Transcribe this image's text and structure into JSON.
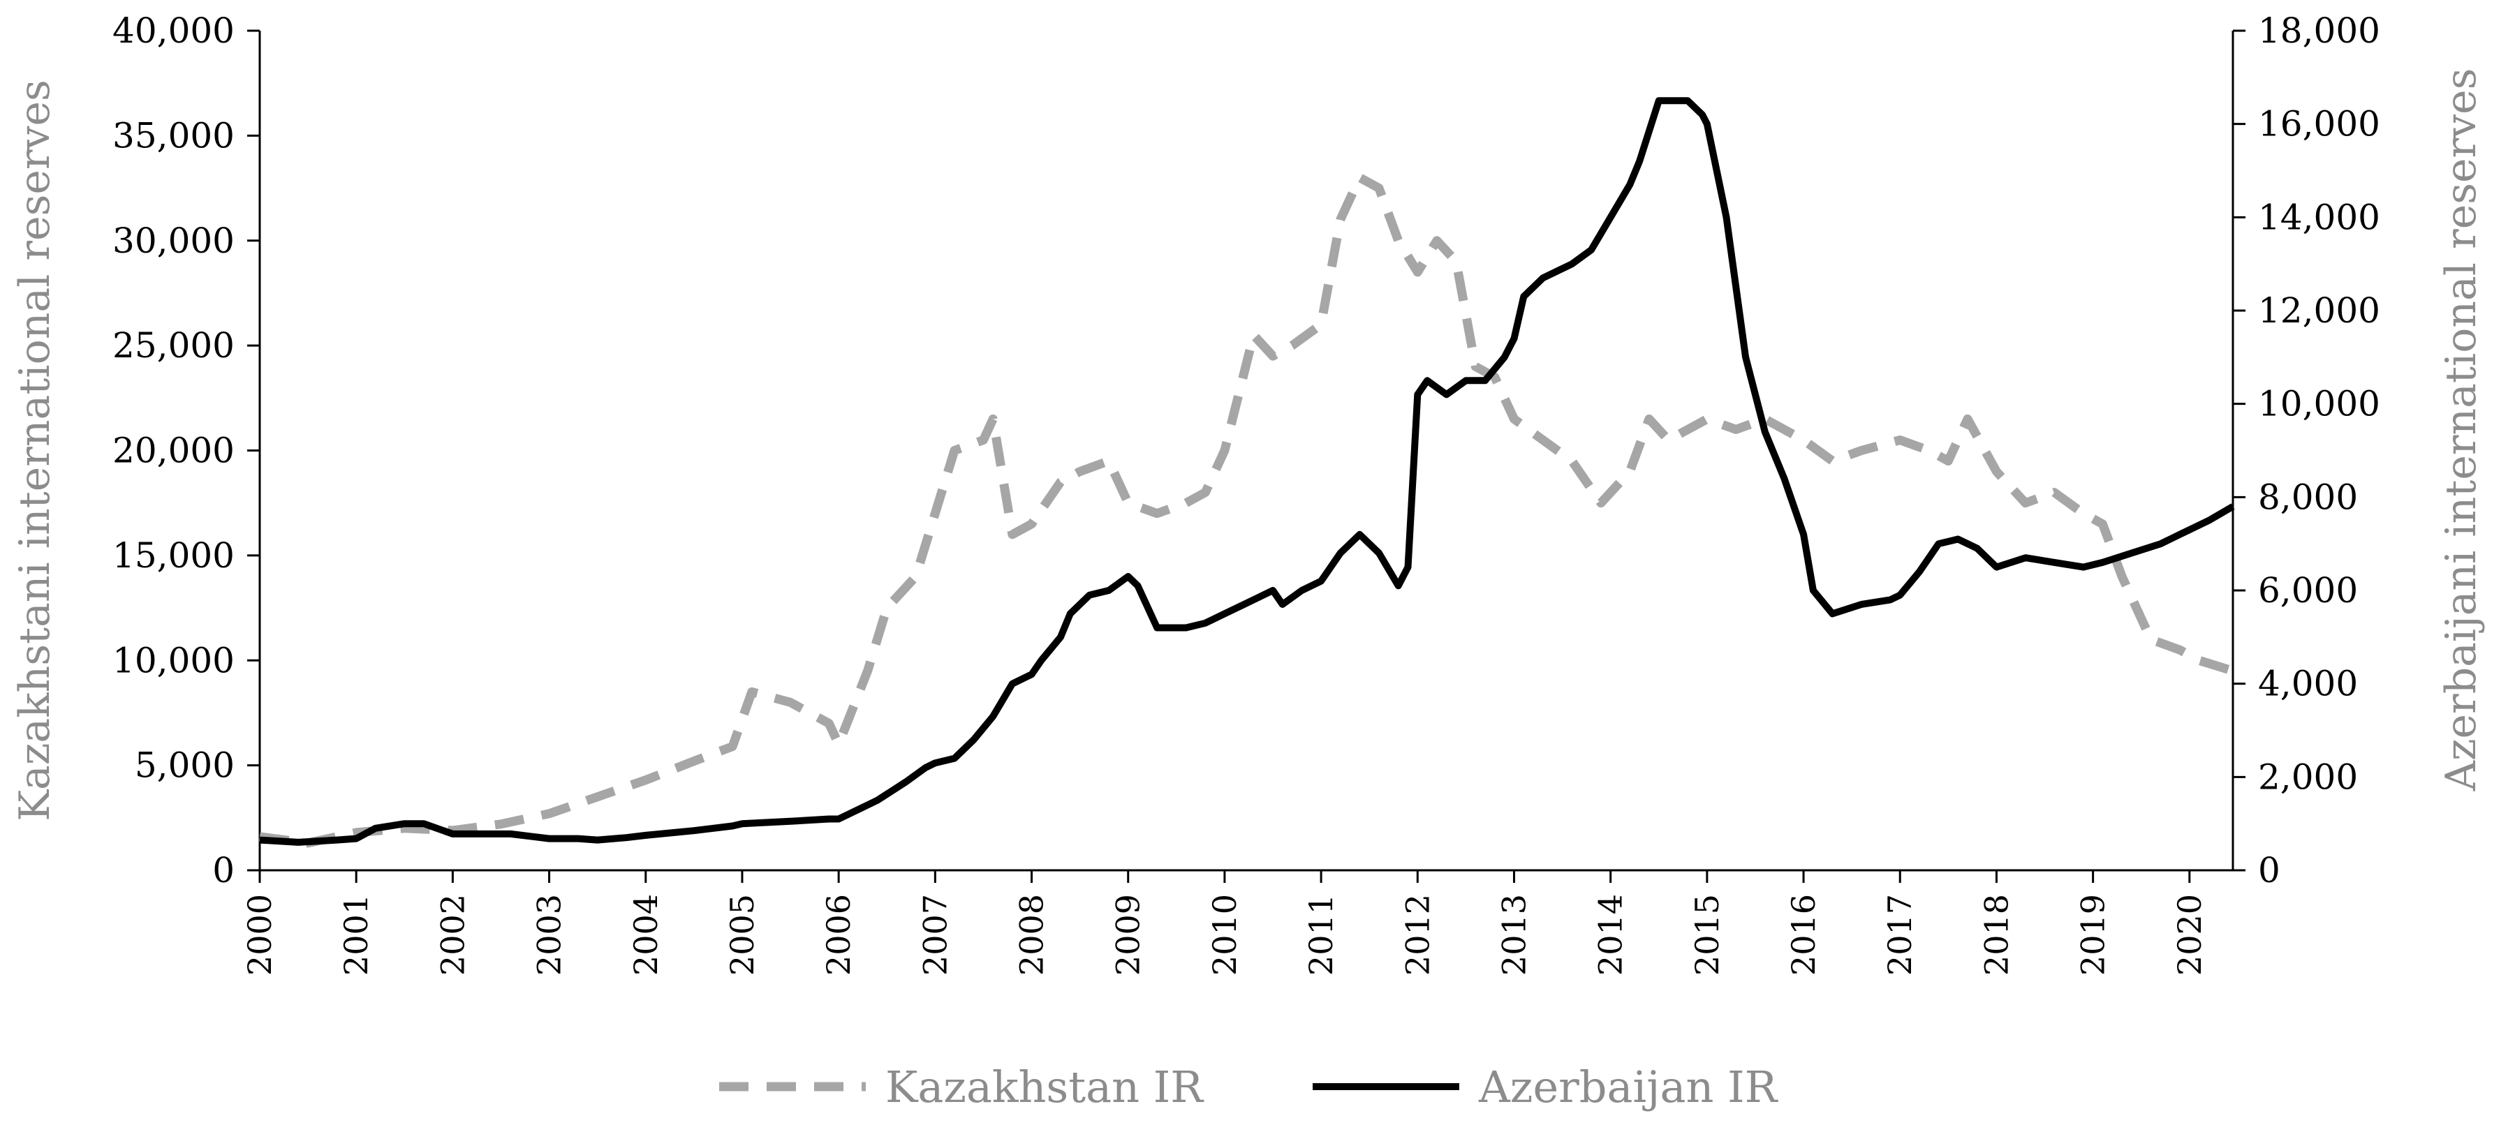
{
  "chart_data": {
    "type": "line",
    "ylabel_left": "Kazakhstani international reserves",
    "ylabel_right": "Azerbaijani international reserves",
    "y_left_range": [
      0,
      40000
    ],
    "y_right_range": [
      0,
      18000
    ],
    "y_left_ticks": [
      "0",
      "5,000",
      "10,000",
      "15,000",
      "20,000",
      "25,000",
      "30,000",
      "35,000",
      "40,000"
    ],
    "y_right_ticks": [
      "0",
      "2,000",
      "4,000",
      "6,000",
      "8,000",
      "10,000",
      "12,000",
      "14,000",
      "16,000",
      "18,000"
    ],
    "x_range": [
      2000.0,
      2020.45
    ],
    "x_ticks": [
      "2000",
      "2001",
      "2002",
      "2003",
      "2004",
      "2005",
      "2006",
      "2007",
      "2008",
      "2009",
      "2010",
      "2011",
      "2012",
      "2013",
      "2014",
      "2015",
      "2016",
      "2017",
      "2018",
      "2019",
      "2020"
    ],
    "grid": false,
    "legend_position": "bottom",
    "colors": {
      "kazakhstan": "#a6a6a6",
      "azerbaijan": "#000000",
      "axis_title": "#8c8c8c"
    },
    "series": [
      {
        "name": "Kazakhstan IR",
        "axis": "left",
        "style": "dashed",
        "x": [
          2000.0,
          2000.5,
          2001.0,
          2001.5,
          2002.0,
          2002.5,
          2003.0,
          2003.5,
          2004.0,
          2004.5,
          2004.9,
          2005.1,
          2005.5,
          2005.9,
          2006.0,
          2006.3,
          2006.5,
          2006.8,
          2007.0,
          2007.2,
          2007.5,
          2007.6,
          2007.8,
          2008.0,
          2008.3,
          2008.5,
          2008.8,
          2009.0,
          2009.3,
          2009.6,
          2009.8,
          2010.0,
          2010.3,
          2010.5,
          2010.7,
          2011.0,
          2011.2,
          2011.4,
          2011.6,
          2011.8,
          2012.0,
          2012.2,
          2012.4,
          2012.6,
          2012.8,
          2013.0,
          2013.3,
          2013.6,
          2013.9,
          2014.2,
          2014.4,
          2014.6,
          2015.0,
          2015.3,
          2015.6,
          2015.8,
          2016.0,
          2016.3,
          2016.6,
          2017.0,
          2017.3,
          2017.5,
          2017.7,
          2018.0,
          2018.3,
          2018.6,
          2018.9,
          2019.1,
          2019.3,
          2019.6,
          2019.9,
          2020.1,
          2020.45
        ],
        "values": [
          1600,
          1300,
          1800,
          2000,
          1900,
          2200,
          2700,
          3500,
          4300,
          5200,
          5900,
          8500,
          8000,
          7000,
          6000,
          9500,
          12500,
          14000,
          17000,
          20000,
          20500,
          21500,
          16000,
          16500,
          18500,
          19000,
          19500,
          17500,
          17000,
          17500,
          18000,
          20000,
          25500,
          24500,
          25000,
          26000,
          31000,
          33000,
          32500,
          30000,
          28500,
          30000,
          29000,
          24000,
          23500,
          21500,
          20500,
          19500,
          17500,
          19000,
          21500,
          20500,
          21500,
          21000,
          21500,
          21000,
          20500,
          19500,
          20000,
          20500,
          20000,
          19500,
          21500,
          19000,
          17500,
          18000,
          17000,
          16500,
          14000,
          11000,
          10500,
          10000,
          9500
        ]
      },
      {
        "name": "Azerbaijan IR",
        "axis": "right",
        "style": "solid",
        "x": [
          2000.0,
          2000.4,
          2000.8,
          2001.0,
          2001.2,
          2001.5,
          2001.7,
          2002.0,
          2002.3,
          2002.6,
          2003.0,
          2003.3,
          2003.5,
          2003.8,
          2004.0,
          2004.5,
          2004.9,
          2005.0,
          2005.5,
          2005.9,
          2006.0,
          2006.2,
          2006.4,
          2006.7,
          2006.9,
          2007.0,
          2007.2,
          2007.4,
          2007.6,
          2007.8,
          2008.0,
          2008.1,
          2008.3,
          2008.4,
          2008.6,
          2008.8,
          2009.0,
          2009.1,
          2009.3,
          2009.6,
          2009.8,
          2010.0,
          2010.3,
          2010.5,
          2010.6,
          2010.8,
          2011.0,
          2011.2,
          2011.4,
          2011.6,
          2011.8,
          2011.9,
          2012.0,
          2012.1,
          2012.3,
          2012.5,
          2012.7,
          2012.9,
          2013.0,
          2013.1,
          2013.3,
          2013.6,
          2013.8,
          2014.0,
          2014.2,
          2014.3,
          2014.5,
          2014.8,
          2014.95,
          2015.0,
          2015.2,
          2015.4,
          2015.6,
          2015.8,
          2016.0,
          2016.1,
          2016.3,
          2016.6,
          2016.9,
          2017.0,
          2017.2,
          2017.4,
          2017.6,
          2017.8,
          2018.0,
          2018.3,
          2018.6,
          2018.9,
          2019.1,
          2019.4,
          2019.7,
          2019.9,
          2020.0,
          2020.2,
          2020.45
        ],
        "values": [
          650,
          600,
          650,
          680,
          900,
          1000,
          1000,
          780,
          780,
          780,
          680,
          680,
          650,
          700,
          750,
          850,
          950,
          1000,
          1050,
          1100,
          1100,
          1300,
          1500,
          1900,
          2200,
          2300,
          2400,
          2800,
          3300,
          4000,
          4200,
          4500,
          5000,
          5500,
          5900,
          6000,
          6300,
          6100,
          5200,
          5200,
          5300,
          5500,
          5800,
          6000,
          5700,
          6000,
          6200,
          6800,
          7200,
          6800,
          6100,
          6500,
          10200,
          10500,
          10200,
          10500,
          10500,
          11000,
          11400,
          12300,
          12700,
          13000,
          13300,
          14000,
          14700,
          15200,
          16500,
          16500,
          16200,
          16000,
          14000,
          11000,
          9400,
          8400,
          7200,
          6000,
          5500,
          5700,
          5800,
          5900,
          6400,
          7000,
          7100,
          6900,
          6500,
          6700,
          6600,
          6500,
          6600,
          6800,
          7000,
          7200,
          7300,
          7500,
          7800
        ]
      }
    ]
  }
}
